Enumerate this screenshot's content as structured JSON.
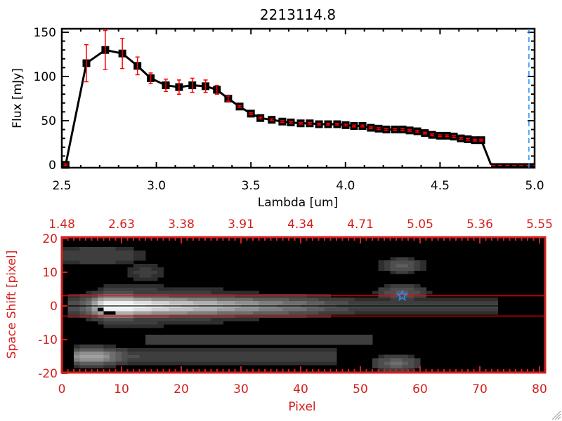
{
  "chart_data": [
    {
      "type": "line",
      "title": "2213114.8",
      "xlabel": "Lambda [um]",
      "ylabel": "Flux [mJy]",
      "xlim": [
        2.5,
        5.0
      ],
      "ylim": [
        0,
        150
      ],
      "xticks": [
        "2.5",
        "3.0",
        "3.5",
        "4.0",
        "4.5",
        "5.0"
      ],
      "yticks": [
        "0",
        "50",
        "100",
        "150"
      ],
      "grid": false,
      "marker": "square",
      "line_color": "#000000",
      "errorbar_color": "#ff0000",
      "x": [
        2.52,
        2.63,
        2.73,
        2.82,
        2.9,
        2.97,
        3.05,
        3.12,
        3.19,
        3.26,
        3.32,
        3.38,
        3.44,
        3.5,
        3.55,
        3.61,
        3.666,
        3.711,
        3.763,
        3.811,
        3.86,
        3.908,
        3.956,
        4.001,
        4.045,
        4.09,
        4.134,
        4.175,
        4.216,
        4.261,
        4.302,
        4.339,
        4.38,
        4.42,
        4.458,
        4.499,
        4.536,
        4.573,
        4.61,
        4.647,
        4.684,
        4.718
      ],
      "y": [
        0,
        115,
        130,
        126,
        112,
        98,
        90,
        88,
        90,
        89,
        85,
        75,
        66,
        58,
        53,
        51,
        49,
        48,
        47,
        47,
        46,
        46,
        46,
        45,
        44,
        44,
        42,
        41,
        40,
        40,
        40,
        39,
        38,
        36,
        34,
        33,
        33,
        32,
        30,
        29,
        28,
        28
      ],
      "yerr": [
        1,
        21,
        22,
        17,
        10,
        6,
        7,
        8,
        8,
        7,
        5,
        3,
        1,
        1,
        1,
        1,
        1,
        1,
        1,
        1,
        1,
        1,
        1,
        1,
        1,
        1,
        1,
        1,
        1,
        1,
        1,
        1,
        1,
        1,
        1,
        1,
        1,
        1,
        1,
        1,
        1,
        1
      ],
      "zero_segment": {
        "x": [
          4.77,
          5.0
        ],
        "y": 0,
        "style": "red-dashed"
      },
      "vertical_line": {
        "x": 4.97,
        "color": "#1e90ff",
        "style": "dashed"
      }
    },
    {
      "type": "heatmap",
      "xlabel": "Pixel",
      "ylabel": "Space Shift [pixel]",
      "xlim": [
        0,
        81
      ],
      "ylim": [
        -21,
        21
      ],
      "xticks": [
        "0",
        "10",
        "20",
        "30",
        "40",
        "50",
        "60",
        "70",
        "80"
      ],
      "yticks": [
        "20",
        "10",
        "0",
        "-10",
        "-20"
      ],
      "top_xticks": [
        "1.48",
        "2.63",
        "3.38",
        "3.91",
        "4.34",
        "4.71",
        "5.05",
        "5.36",
        "5.55"
      ],
      "colormap": "grayscale",
      "axis_color": "#d42020",
      "hlines": [
        {
          "y": 3,
          "color": "#ff0000"
        },
        {
          "y": 0,
          "color": "#000000"
        },
        {
          "y": -3,
          "color": "#ff0000"
        }
      ],
      "star_marker": {
        "x": 57,
        "y": 3,
        "color": "#1e90ff"
      }
    }
  ]
}
